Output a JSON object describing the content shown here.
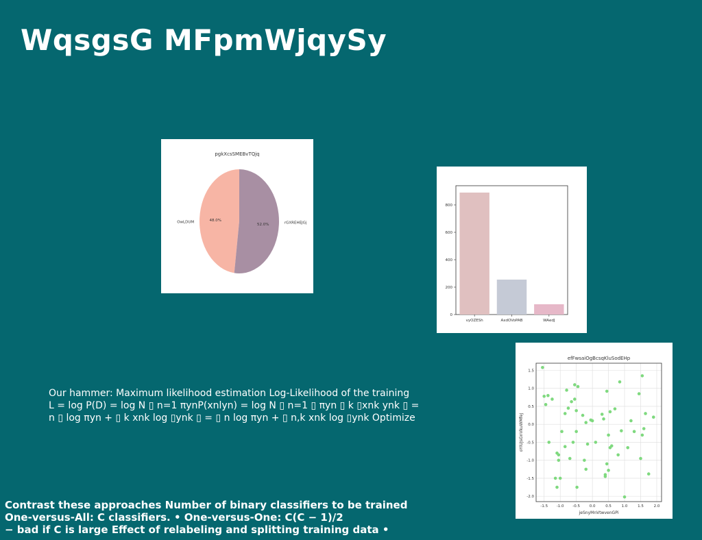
{
  "slide": {
    "title": "WqsgsG MFpmWjqySy",
    "paragraph_lines": [
      "Our hammer: Maximum likelihood estimation Log-Likelihood of the training",
      "L = log P(D) = log N ▯ n=1 πynP(xnlyn) = log N ▯ n=1 ▯ πyn ▯ k ▯xnk ynk ▯ =",
      "n ▯ log πyn + ▯ k xnk log ▯ynk ▯ = ▯ n log πyn + ▯ n,k xnk log ▯ynk Optimize"
    ],
    "bottom_lines": [
      "Contrast these approaches Number of binary classifiers to be trained",
      "One-versus-All: C classifiers. • One-versus-One: C(C − 1)/2",
      "− bad if C is large Effect of relabeling and splitting training data •"
    ]
  },
  "chart_data": [
    {
      "type": "pie",
      "title": "pgkXcsSMEBvTQjq",
      "labels": [
        "OwLDUM",
        "rGXREHEJGj"
      ],
      "values": [
        48.0,
        52.0
      ],
      "value_labels": [
        "48.0%",
        "52.0%"
      ],
      "colors": [
        "#f7b5a5",
        "#a88fa3"
      ]
    },
    {
      "type": "bar",
      "title": "",
      "categories": [
        "vyOZESh",
        "AxdOVoPAB",
        "WAedJ"
      ],
      "values": [
        890,
        255,
        75
      ],
      "colors": [
        "#e0c0c0",
        "#c5cad6",
        "#e6b8c8"
      ],
      "ylim": [
        0,
        940
      ],
      "yticks": [
        0,
        200,
        400,
        600,
        800
      ],
      "xlabel": "",
      "ylabel": ""
    },
    {
      "type": "scatter",
      "title": "efFwsaiOgBcsqKluSodEHp",
      "xlabel": "jeSnyMnVtwvenGPi",
      "ylabel": "oYIUJsGnVkuWMfeJ",
      "xlim": [
        -1.75,
        2.15
      ],
      "ylim": [
        -2.15,
        1.7
      ],
      "xticks": [
        -1.5,
        -1.0,
        -0.5,
        0.0,
        0.5,
        1.0,
        1.5,
        2.0
      ],
      "xtick_labels": [
        "-1.5",
        "-1.0",
        "-0.5",
        "0.0",
        "0.5",
        "1.0",
        "1.5",
        "2.0"
      ],
      "yticks": [
        -2.0,
        -1.5,
        -1.0,
        -0.5,
        0.0,
        0.5,
        1.0,
        1.5
      ],
      "ytick_labels": [
        "-2.0",
        "-1.5",
        "-1.0",
        "-0.5",
        "0.0",
        "0.5",
        "1.0",
        "1.5"
      ],
      "grid": true,
      "color": "#7fd97f",
      "points": [
        [
          -1.55,
          1.58
        ],
        [
          -1.5,
          0.78
        ],
        [
          -1.38,
          0.8
        ],
        [
          -1.45,
          0.55
        ],
        [
          -1.25,
          0.7
        ],
        [
          -1.35,
          -0.5
        ],
        [
          -1.1,
          -0.8
        ],
        [
          -1.05,
          -1.0
        ],
        [
          -1.15,
          -1.5
        ],
        [
          -1.0,
          -1.5
        ],
        [
          -1.1,
          -1.75
        ],
        [
          -1.05,
          -0.85
        ],
        [
          -0.95,
          -0.2
        ],
        [
          -0.85,
          -0.62
        ],
        [
          -0.85,
          0.3
        ],
        [
          -0.8,
          0.95
        ],
        [
          -0.75,
          0.45
        ],
        [
          -0.7,
          -0.95
        ],
        [
          -0.65,
          0.63
        ],
        [
          -0.6,
          -0.5
        ],
        [
          -0.55,
          0.7
        ],
        [
          -0.55,
          1.1
        ],
        [
          -0.5,
          0.38
        ],
        [
          -0.45,
          1.05
        ],
        [
          -0.5,
          -0.2
        ],
        [
          -0.48,
          -1.75
        ],
        [
          -0.3,
          0.25
        ],
        [
          -0.25,
          -1.0
        ],
        [
          -0.2,
          -1.25
        ],
        [
          -0.2,
          0.05
        ],
        [
          -0.15,
          -0.55
        ],
        [
          -0.05,
          0.12
        ],
        [
          0.0,
          0.1
        ],
        [
          0.1,
          -0.5
        ],
        [
          0.3,
          0.28
        ],
        [
          0.35,
          0.15
        ],
        [
          0.4,
          -1.4
        ],
        [
          0.4,
          -1.45
        ],
        [
          0.45,
          -1.1
        ],
        [
          0.5,
          -1.28
        ],
        [
          0.45,
          0.92
        ],
        [
          0.5,
          -0.3
        ],
        [
          0.55,
          0.35
        ],
        [
          0.55,
          -0.65
        ],
        [
          0.6,
          -0.6
        ],
        [
          0.7,
          0.43
        ],
        [
          0.8,
          -0.85
        ],
        [
          0.85,
          1.18
        ],
        [
          1.0,
          -2.02
        ],
        [
          1.1,
          -0.65
        ],
        [
          1.2,
          0.1
        ],
        [
          1.3,
          -0.2
        ],
        [
          1.45,
          0.85
        ],
        [
          1.5,
          -0.95
        ],
        [
          1.55,
          1.35
        ],
        [
          1.55,
          -0.3
        ],
        [
          1.6,
          -0.12
        ],
        [
          1.65,
          0.3
        ],
        [
          1.75,
          -1.38
        ],
        [
          1.9,
          0.2
        ],
        [
          0.9,
          -0.18
        ]
      ]
    }
  ]
}
